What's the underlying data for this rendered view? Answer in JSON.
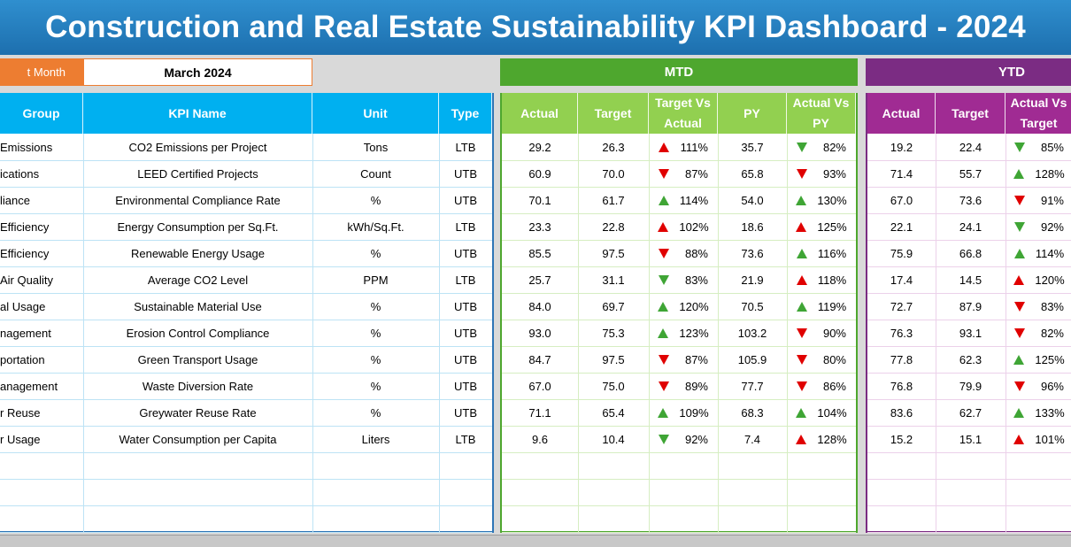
{
  "title": "Construction and Real Estate Sustainability KPI Dashboard - 2024",
  "selector": {
    "label": "t Month",
    "value": "March 2024"
  },
  "bands": {
    "mtd": "MTD",
    "ytd": "YTD"
  },
  "kpi_headers": [
    "Group",
    "KPI Name",
    "Unit",
    "Type"
  ],
  "mtd_headers": [
    "Actual",
    "Target",
    "Target Vs Actual",
    "PY",
    "Actual Vs PY"
  ],
  "ytd_headers": [
    "Actual",
    "Target",
    "Actual Vs Target"
  ],
  "colors": {
    "up_good": "#3fa535",
    "bad": "#e00000",
    "kpi_header": "#00b0f0",
    "mtd_header": "#92d050",
    "ytd_header": "#a02b93"
  },
  "rows": [
    {
      "group": "Emissions",
      "kpi": "CO2 Emissions per Project",
      "unit": "Tons",
      "type": "LTB",
      "mtd": {
        "actual": "29.2",
        "target": "26.3",
        "tva": "111%",
        "tva_dir": "up",
        "tva_color": "red",
        "py": "35.7",
        "avp": "82%",
        "avp_dir": "down",
        "avp_color": "green"
      },
      "ytd": {
        "actual": "19.2",
        "target": "22.4",
        "avt": "85%",
        "avt_dir": "down",
        "avt_color": "green"
      }
    },
    {
      "group": "ications",
      "kpi": "LEED Certified Projects",
      "unit": "Count",
      "type": "UTB",
      "mtd": {
        "actual": "60.9",
        "target": "70.0",
        "tva": "87%",
        "tva_dir": "down",
        "tva_color": "red",
        "py": "65.8",
        "avp": "93%",
        "avp_dir": "down",
        "avp_color": "red"
      },
      "ytd": {
        "actual": "71.4",
        "target": "55.7",
        "avt": "128%",
        "avt_dir": "up",
        "avt_color": "green"
      }
    },
    {
      "group": "liance",
      "kpi": "Environmental Compliance Rate",
      "unit": "%",
      "type": "UTB",
      "mtd": {
        "actual": "70.1",
        "target": "61.7",
        "tva": "114%",
        "tva_dir": "up",
        "tva_color": "green",
        "py": "54.0",
        "avp": "130%",
        "avp_dir": "up",
        "avp_color": "green"
      },
      "ytd": {
        "actual": "67.0",
        "target": "73.6",
        "avt": "91%",
        "avt_dir": "down",
        "avt_color": "red"
      }
    },
    {
      "group": "Efficiency",
      "kpi": "Energy Consumption per Sq.Ft.",
      "unit": "kWh/Sq.Ft.",
      "type": "LTB",
      "mtd": {
        "actual": "23.3",
        "target": "22.8",
        "tva": "102%",
        "tva_dir": "up",
        "tva_color": "red",
        "py": "18.6",
        "avp": "125%",
        "avp_dir": "up",
        "avp_color": "red"
      },
      "ytd": {
        "actual": "22.1",
        "target": "24.1",
        "avt": "92%",
        "avt_dir": "down",
        "avt_color": "green"
      }
    },
    {
      "group": "Efficiency",
      "kpi": "Renewable Energy Usage",
      "unit": "%",
      "type": "UTB",
      "mtd": {
        "actual": "85.5",
        "target": "97.5",
        "tva": "88%",
        "tva_dir": "down",
        "tva_color": "red",
        "py": "73.6",
        "avp": "116%",
        "avp_dir": "up",
        "avp_color": "green"
      },
      "ytd": {
        "actual": "75.9",
        "target": "66.8",
        "avt": "114%",
        "avt_dir": "up",
        "avt_color": "green"
      }
    },
    {
      "group": "Air Quality",
      "kpi": "Average CO2 Level",
      "unit": "PPM",
      "type": "LTB",
      "mtd": {
        "actual": "25.7",
        "target": "31.1",
        "tva": "83%",
        "tva_dir": "down",
        "tva_color": "green",
        "py": "21.9",
        "avp": "118%",
        "avp_dir": "up",
        "avp_color": "red"
      },
      "ytd": {
        "actual": "17.4",
        "target": "14.5",
        "avt": "120%",
        "avt_dir": "up",
        "avt_color": "red"
      }
    },
    {
      "group": "al Usage",
      "kpi": "Sustainable Material Use",
      "unit": "%",
      "type": "UTB",
      "mtd": {
        "actual": "84.0",
        "target": "69.7",
        "tva": "120%",
        "tva_dir": "up",
        "tva_color": "green",
        "py": "70.5",
        "avp": "119%",
        "avp_dir": "up",
        "avp_color": "green"
      },
      "ytd": {
        "actual": "72.7",
        "target": "87.9",
        "avt": "83%",
        "avt_dir": "down",
        "avt_color": "red"
      }
    },
    {
      "group": "nagement",
      "kpi": "Erosion Control Compliance",
      "unit": "%",
      "type": "UTB",
      "mtd": {
        "actual": "93.0",
        "target": "75.3",
        "tva": "123%",
        "tva_dir": "up",
        "tva_color": "green",
        "py": "103.2",
        "avp": "90%",
        "avp_dir": "down",
        "avp_color": "red"
      },
      "ytd": {
        "actual": "76.3",
        "target": "93.1",
        "avt": "82%",
        "avt_dir": "down",
        "avt_color": "red"
      }
    },
    {
      "group": "portation",
      "kpi": "Green Transport Usage",
      "unit": "%",
      "type": "UTB",
      "mtd": {
        "actual": "84.7",
        "target": "97.5",
        "tva": "87%",
        "tva_dir": "down",
        "tva_color": "red",
        "py": "105.9",
        "avp": "80%",
        "avp_dir": "down",
        "avp_color": "red"
      },
      "ytd": {
        "actual": "77.8",
        "target": "62.3",
        "avt": "125%",
        "avt_dir": "up",
        "avt_color": "green"
      }
    },
    {
      "group": "anagement",
      "kpi": "Waste Diversion Rate",
      "unit": "%",
      "type": "UTB",
      "mtd": {
        "actual": "67.0",
        "target": "75.0",
        "tva": "89%",
        "tva_dir": "down",
        "tva_color": "red",
        "py": "77.7",
        "avp": "86%",
        "avp_dir": "down",
        "avp_color": "red"
      },
      "ytd": {
        "actual": "76.8",
        "target": "79.9",
        "avt": "96%",
        "avt_dir": "down",
        "avt_color": "red"
      }
    },
    {
      "group": "r Reuse",
      "kpi": "Greywater Reuse Rate",
      "unit": "%",
      "type": "UTB",
      "mtd": {
        "actual": "71.1",
        "target": "65.4",
        "tva": "109%",
        "tva_dir": "up",
        "tva_color": "green",
        "py": "68.3",
        "avp": "104%",
        "avp_dir": "up",
        "avp_color": "green"
      },
      "ytd": {
        "actual": "83.6",
        "target": "62.7",
        "avt": "133%",
        "avt_dir": "up",
        "avt_color": "green"
      }
    },
    {
      "group": "r Usage",
      "kpi": "Water Consumption per Capita",
      "unit": "Liters",
      "type": "LTB",
      "mtd": {
        "actual": "9.6",
        "target": "10.4",
        "tva": "92%",
        "tva_dir": "down",
        "tva_color": "green",
        "py": "7.4",
        "avp": "128%",
        "avp_dir": "up",
        "avp_color": "red"
      },
      "ytd": {
        "actual": "15.2",
        "target": "15.1",
        "avt": "101%",
        "avt_dir": "up",
        "avt_color": "red"
      }
    }
  ]
}
